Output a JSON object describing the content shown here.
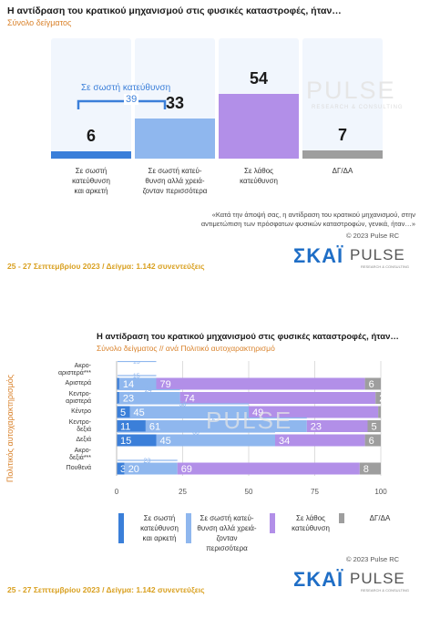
{
  "top": {
    "title": "Η αντίδραση του κρατικού μηχανισμού στις φυσικές καταστροφές, ήταν…",
    "subtitle": "Σύνολο δείγματος",
    "annotation_label": "Σε σωστή κατεύθυνση",
    "annotation_value": "39",
    "watermark": "PULSE",
    "watermark_sub": "RESEARCH & CONSULTING",
    "footnote_line1": "«Κατά την άποψή σας, η αντίδραση του κρατικού μηχανισμού, στην",
    "footnote_line2": "αντιμετώπιση των πρόσφατων φυσικών καταστροφών, γενικά, ήταν…»",
    "copyright": "© 2023 Pulse RC",
    "dates": "25 - 27  Σεπτεμβρίου  2023  /  Δείγμα:  1.142 συνεντεύξεις",
    "logo_skai": "ΣΚΑΪ",
    "logo_pulse": "PULSE",
    "logo_pulse_sub": "RESEARCH & CONSULTING"
  },
  "bottom": {
    "title": "Η αντίδραση του κρατικού μηχανισμού στις φυσικές καταστροφές, ήταν…",
    "subtitle": "Σύνολο δείγματος // ανά Πολιτικό αυτοχαρακτηρισμό",
    "yaxis_title": "Πολιτικός αυτοχαρακτηρισμός",
    "watermark": "PULSE",
    "copyright": "© 2023 Pulse RC",
    "dates": "25 - 27  Σεπτεμβρίου  2023  /  Δείγμα:  1.142 συνεντεύξεις",
    "logo_skai": "ΣΚΑΪ",
    "logo_pulse": "PULSE",
    "logo_pulse_sub": "RESEARCH & CONSULTING"
  },
  "chart_data": [
    {
      "type": "bar",
      "categories": [
        "Σε σωστή κατεύθυνση και αρκετή",
        "Σε σωστή κατεύθυνση αλλά χρειάζονταν περισσότερα",
        "Σε λάθος κατεύθυνση",
        "ΔΓ/ΔΑ"
      ],
      "category_lines": [
        [
          "Σε σωστή",
          "κατεύθυνση",
          "και αρκετή"
        ],
        [
          "Σε σωστή κατεύ-",
          "θυνση αλλά χρειά-",
          "ζονταν περισσότερα"
        ],
        [
          "Σε λάθος",
          "κατεύθυνση"
        ],
        [
          "ΔΓ/ΔΑ"
        ]
      ],
      "values": [
        6,
        33,
        54,
        7
      ],
      "colors": [
        "#3b7fd9",
        "#8fb7ee",
        "#b28fe8",
        "#9e9e9e"
      ],
      "ylim": [
        0,
        100
      ]
    },
    {
      "type": "bar",
      "orientation": "horizontal-stacked",
      "rows": [
        {
          "label": [
            "Ακρο-",
            "αριστερά***"
          ],
          "values": [],
          "total": 15
        },
        {
          "label": [
            "Αριστερά"
          ],
          "values": [
            1,
            14,
            79,
            6
          ],
          "total": 15
        },
        {
          "label": [
            "Κεντρο-",
            "αριστερά"
          ],
          "values": [
            1,
            23,
            74,
            2
          ],
          "total": 24
        },
        {
          "label": [
            "Κέντρο"
          ],
          "values": [
            5,
            45,
            49,
            1
          ],
          "total": 50
        },
        {
          "label": [
            "Κεντρο-",
            "δεξιά"
          ],
          "values": [
            11,
            61,
            23,
            5
          ],
          "total": 72
        },
        {
          "label": [
            "Δεξιά"
          ],
          "values": [
            15,
            45,
            34,
            6
          ],
          "total": 60
        },
        {
          "label": [
            "Ακρο-",
            "δεξιά***"
          ],
          "values": [],
          "total": null
        },
        {
          "label": [
            "Πουθενά"
          ],
          "values": [
            3,
            20,
            69,
            8
          ],
          "total": 23
        }
      ],
      "series": [
        {
          "name": "Σε σωστή κατεύθυνση και αρκετή",
          "lines": [
            "Σε σωστή",
            "κατεύθυνση",
            "και αρκετή"
          ],
          "color": "#3b7fd9"
        },
        {
          "name": "Σε σωστή κατεύθυνση αλλά χρειάζονταν περισσότερα",
          "lines": [
            "Σε σωστή κατεύ-",
            "θυνση αλλά χρειά-",
            "ζονταν περισσότερα"
          ],
          "color": "#8fb7ee"
        },
        {
          "name": "Σε λάθος κατεύθυνση",
          "lines": [
            "Σε λάθος",
            "κατεύθυνση"
          ],
          "color": "#b28fe8"
        },
        {
          "name": "ΔΓ/ΔΑ",
          "lines": [
            "ΔΓ/ΔΑ"
          ],
          "color": "#9e9e9e"
        }
      ],
      "xticks": [
        0,
        25,
        50,
        75,
        100
      ],
      "xlim": [
        0,
        100
      ],
      "grid": true
    }
  ]
}
